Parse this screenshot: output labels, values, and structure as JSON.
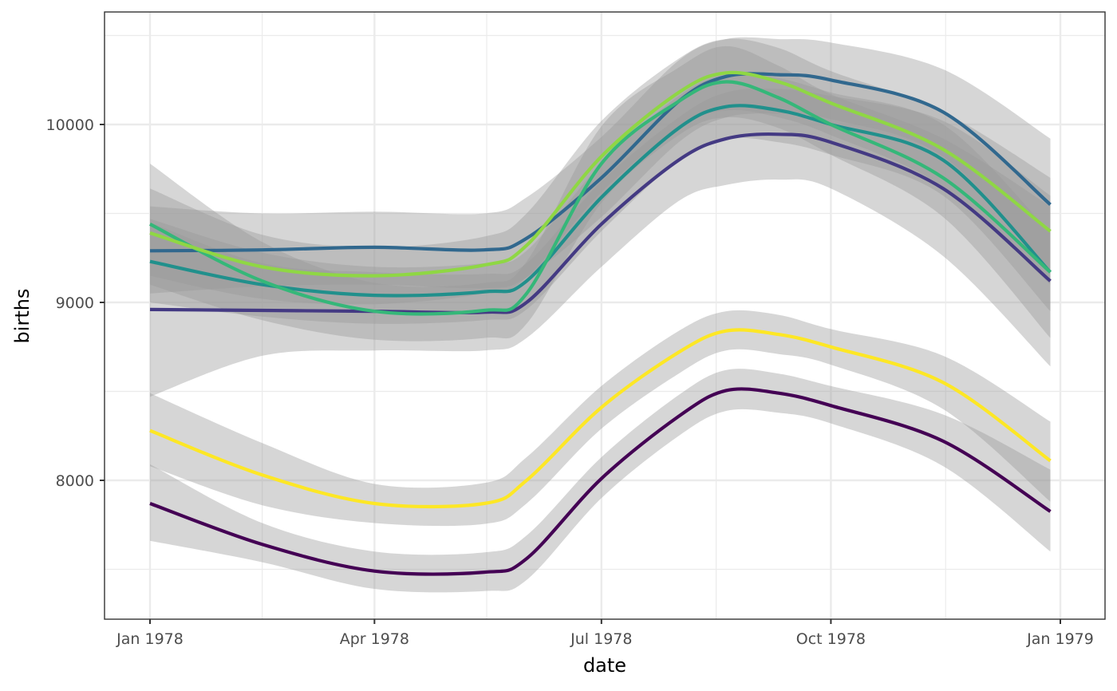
{
  "chart_data": {
    "type": "line",
    "subtype": "smoothed lines with confidence ribbons (loess)",
    "title": "",
    "xlabel": "date",
    "ylabel": "births",
    "x_type": "date",
    "xlim": [
      "1977-12-20",
      "1979-01-08"
    ],
    "ylim": [
      7240,
      10630
    ],
    "grid": true,
    "legend": "none",
    "x_ticks": [
      {
        "value": "1978-01-01",
        "label": "Jan 1978"
      },
      {
        "value": "1978-04-01",
        "label": "Apr 1978"
      },
      {
        "value": "1978-07-01",
        "label": "Jul 1978"
      },
      {
        "value": "1978-10-01",
        "label": "Oct 1978"
      },
      {
        "value": "1979-01-01",
        "label": "Jan 1979"
      }
    ],
    "x_minor_ticks": [
      "1978-02-15",
      "1978-05-16",
      "1978-08-16",
      "1978-11-16"
    ],
    "y_ticks": [
      {
        "value": 8000,
        "label": "8000"
      },
      {
        "value": 9000,
        "label": "9000"
      },
      {
        "value": 10000,
        "label": "10000"
      }
    ],
    "y_minor_ticks": [
      7500,
      8500,
      9500,
      10500
    ],
    "ribbon_color": "#999999",
    "ribbon_opacity": 0.4,
    "x": [
      "1978-01-01",
      "1978-02-15",
      "1978-04-01",
      "1978-05-15",
      "1978-06-01",
      "1978-07-01",
      "1978-08-01",
      "1978-08-20",
      "1978-09-10",
      "1978-10-01",
      "1978-11-15",
      "1978-12-28"
    ],
    "series": [
      {
        "name": "series-1",
        "color": "#440154",
        "values": [
          7870,
          7640,
          7490,
          7484,
          7560,
          8010,
          8360,
          8505,
          8490,
          8420,
          8220,
          7825
        ],
        "lower": [
          7660,
          7540,
          7390,
          7378,
          7440,
          7900,
          8250,
          8390,
          8380,
          8320,
          8080,
          7600
        ],
        "upper": [
          8090,
          7760,
          7600,
          7595,
          7690,
          8130,
          8480,
          8620,
          8600,
          8530,
          8370,
          8060
        ]
      },
      {
        "name": "series-2",
        "color": "#443A83",
        "values": [
          8960,
          8955,
          8950,
          8945,
          9000,
          9440,
          9800,
          9920,
          9945,
          9900,
          9640,
          9120
        ],
        "lower": [
          8470,
          8700,
          8730,
          8730,
          8800,
          9200,
          9570,
          9660,
          9690,
          9640,
          9260,
          8640
        ],
        "upper": [
          9450,
          9220,
          9170,
          9160,
          9220,
          9680,
          10040,
          10180,
          10200,
          10160,
          10020,
          9600
        ]
      },
      {
        "name": "series-3",
        "color": "#31688E",
        "values": [
          9290,
          9295,
          9310,
          9295,
          9360,
          9700,
          10130,
          10270,
          10280,
          10250,
          10070,
          9550
        ],
        "lower": [
          9050,
          9090,
          9100,
          9080,
          9140,
          9480,
          9900,
          10040,
          10060,
          10030,
          9820,
          9180
        ],
        "upper": [
          9540,
          9500,
          9510,
          9500,
          9590,
          9930,
          10360,
          10480,
          10480,
          10460,
          10310,
          9920
        ]
      },
      {
        "name": "series-4",
        "color": "#21908C",
        "values": [
          9230,
          9100,
          9040,
          9060,
          9120,
          9590,
          9980,
          10100,
          10080,
          10000,
          9800,
          9170
        ],
        "lower": [
          9000,
          8920,
          8880,
          8900,
          8960,
          9400,
          9800,
          9920,
          9900,
          9830,
          9600,
          8950
        ],
        "upper": [
          9470,
          9280,
          9200,
          9220,
          9290,
          9780,
          10160,
          10280,
          10260,
          10180,
          10000,
          9390
        ]
      },
      {
        "name": "series-5",
        "color": "#35B779",
        "values": [
          9440,
          9120,
          8950,
          8955,
          9050,
          9780,
          10130,
          10240,
          10150,
          10000,
          9700,
          9170
        ],
        "lower": [
          9100,
          8900,
          8790,
          8800,
          8880,
          9560,
          9940,
          10040,
          9980,
          9830,
          9480,
          8800
        ],
        "upper": [
          9780,
          9340,
          9110,
          9110,
          9230,
          9990,
          10320,
          10440,
          10330,
          10170,
          9920,
          9540
        ]
      },
      {
        "name": "series-6",
        "color": "#8FD744",
        "values": [
          9390,
          9200,
          9150,
          9210,
          9320,
          9820,
          10180,
          10290,
          10240,
          10120,
          9860,
          9400
        ],
        "lower": [
          9150,
          9020,
          8990,
          9050,
          9140,
          9620,
          9980,
          10080,
          10040,
          9940,
          9650,
          9100
        ],
        "upper": [
          9640,
          9380,
          9310,
          9370,
          9500,
          10020,
          10370,
          10480,
          10430,
          10300,
          10070,
          9700
        ]
      },
      {
        "name": "series-7",
        "color": "#FDE725",
        "values": [
          8280,
          8030,
          7870,
          7870,
          8000,
          8410,
          8720,
          8840,
          8820,
          8750,
          8550,
          8110
        ],
        "lower": [
          8080,
          7860,
          7760,
          7755,
          7870,
          8290,
          8600,
          8730,
          8710,
          8650,
          8400,
          7880
        ],
        "upper": [
          8490,
          8210,
          7980,
          7985,
          8130,
          8530,
          8840,
          8950,
          8930,
          8850,
          8700,
          8330
        ]
      }
    ]
  }
}
